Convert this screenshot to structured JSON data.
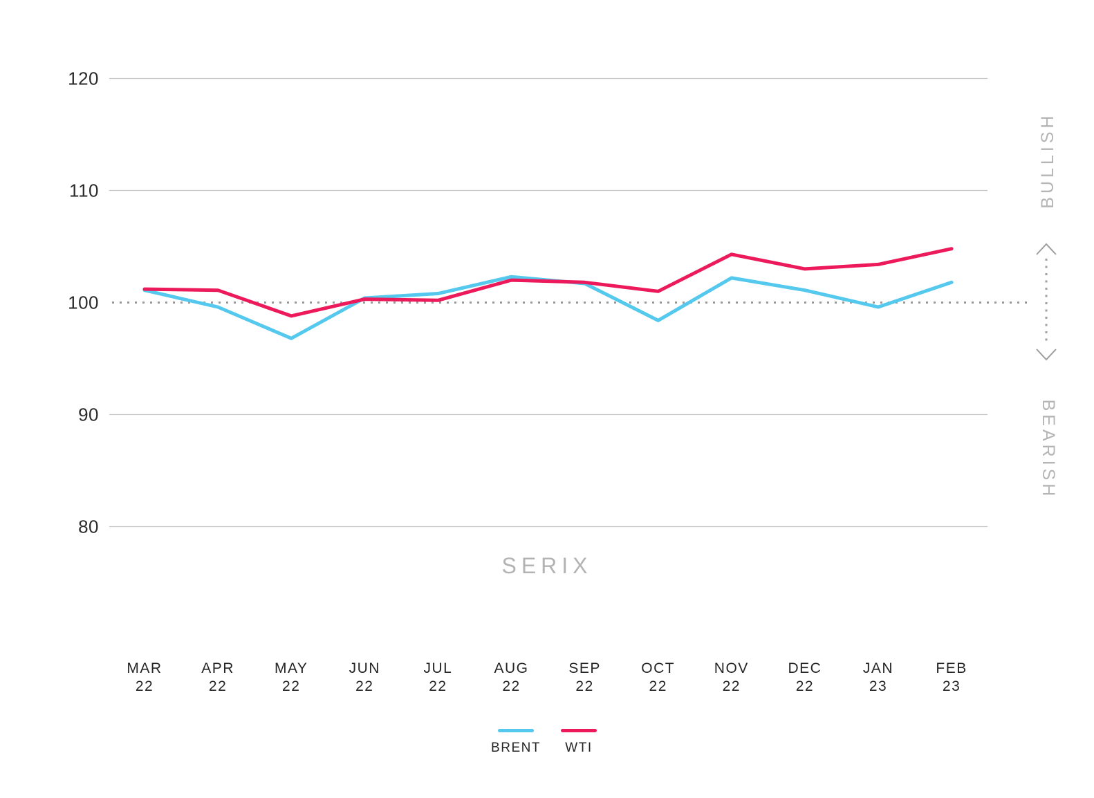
{
  "title": {
    "text": "SERIX"
  },
  "right_labels": {
    "bullish": "BULLISH",
    "bearish": "BEARISH"
  },
  "legend": {
    "items": [
      {
        "label": "BRENT",
        "color": "#55c8ee"
      },
      {
        "label": "WTI",
        "color": "#ec1a5b"
      }
    ]
  },
  "colors": {
    "brent": "#55c8ee",
    "wti": "#ec1a5b",
    "grid": "#c6c6c6",
    "baseline_dots": "#9a9a9a",
    "arrow": "#9e9e9e",
    "axis_text": "#2b2b2b",
    "muted_text": "#b5b5b5"
  },
  "chart_data": {
    "type": "line",
    "title": "SERIX",
    "categories": [
      {
        "month": "MAR",
        "year": "22"
      },
      {
        "month": "APR",
        "year": "22"
      },
      {
        "month": "MAY",
        "year": "22"
      },
      {
        "month": "JUN",
        "year": "22"
      },
      {
        "month": "JUL",
        "year": "22"
      },
      {
        "month": "AUG",
        "year": "22"
      },
      {
        "month": "SEP",
        "year": "22"
      },
      {
        "month": "OCT",
        "year": "22"
      },
      {
        "month": "NOV",
        "year": "22"
      },
      {
        "month": "DEC",
        "year": "22"
      },
      {
        "month": "JAN",
        "year": "23"
      },
      {
        "month": "FEB",
        "year": "23"
      }
    ],
    "series": [
      {
        "name": "BRENT",
        "color": "#55c8ee",
        "values": [
          101.1,
          99.6,
          96.8,
          100.4,
          100.8,
          102.3,
          101.7,
          98.4,
          102.2,
          101.1,
          99.6,
          101.8
        ]
      },
      {
        "name": "WTI",
        "color": "#ec1a5b",
        "values": [
          101.2,
          101.1,
          98.8,
          100.3,
          100.2,
          102.0,
          101.8,
          101.0,
          104.3,
          103.0,
          103.4,
          104.8
        ]
      }
    ],
    "yticks": [
      120,
      110,
      100,
      90,
      80
    ],
    "baseline_value": 100,
    "ylim": [
      76,
      124
    ],
    "grid": "horizontal-only",
    "baseline_style": "dotted",
    "legend_position": "bottom",
    "annotations": {
      "right_top": "BULLISH",
      "right_bottom": "BEARISH",
      "arrow": "double-headed vertical dotted arrow centered on baseline 100"
    }
  }
}
